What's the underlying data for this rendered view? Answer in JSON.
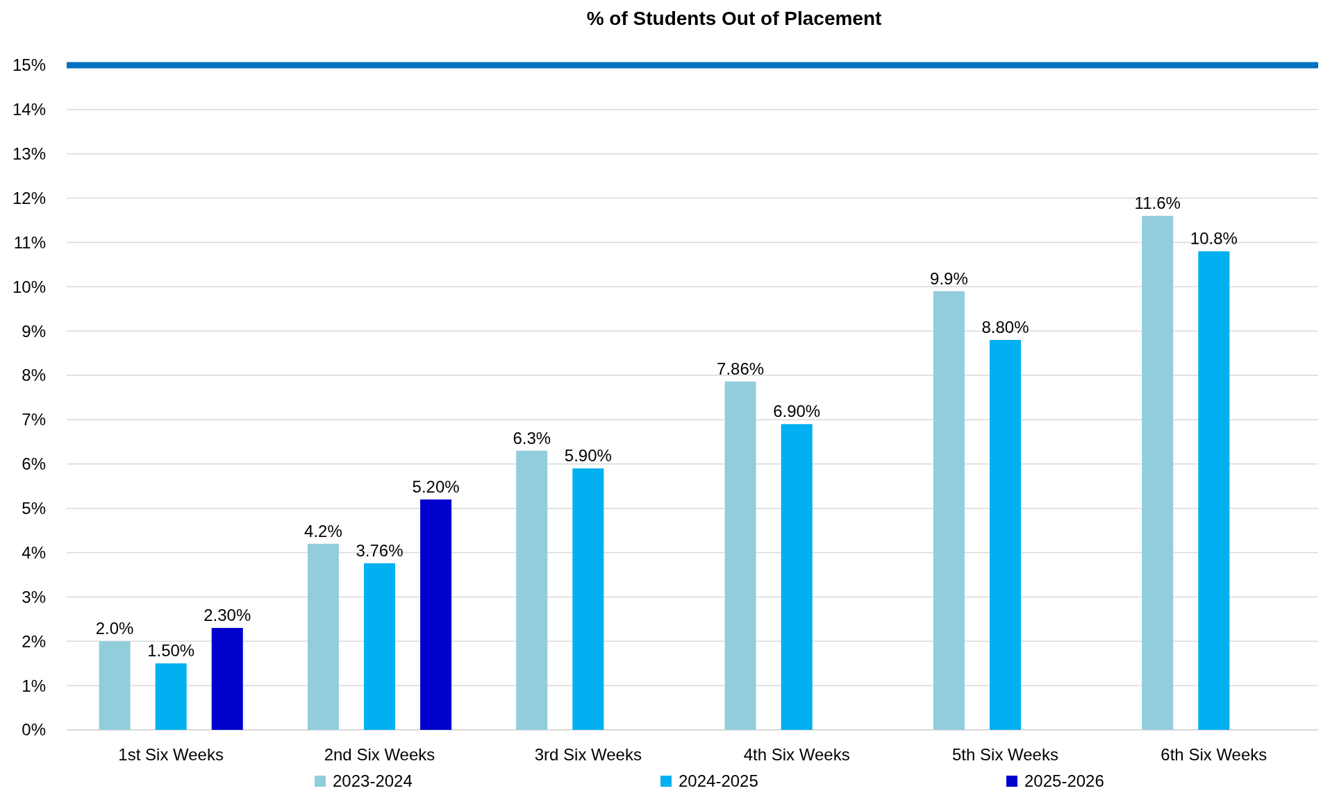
{
  "chart_data": {
    "type": "bar",
    "title": "% of Students Out of Placement",
    "categories": [
      "1st Six Weeks",
      "2nd Six Weeks",
      "3rd Six Weeks",
      "4th Six Weeks",
      "5th Six Weeks",
      "6th Six Weeks"
    ],
    "series": [
      {
        "name": "2023-2024",
        "color": "#92cddc",
        "values": [
          2.0,
          4.2,
          6.3,
          7.86,
          9.9,
          11.6
        ],
        "value_labels": [
          "2.0%",
          "4.2%",
          "6.3%",
          "7.86%",
          "9.9%",
          "11.6%"
        ]
      },
      {
        "name": "2024-2025",
        "color": "#00b0f0",
        "values": [
          1.5,
          3.76,
          5.9,
          6.9,
          8.8,
          10.8
        ],
        "value_labels": [
          "1.50%",
          "3.76%",
          "5.90%",
          "6.90%",
          "8.80%",
          "10.8%"
        ]
      },
      {
        "name": "2025-2026",
        "color": "#0000cc",
        "values": [
          2.3,
          5.2,
          null,
          null,
          null,
          null
        ],
        "value_labels": [
          "2.30%",
          "5.20%",
          null,
          null,
          null,
          null
        ]
      }
    ],
    "ylim": [
      0,
      15
    ],
    "yticks": [
      {
        "value": 0,
        "label": "0%"
      },
      {
        "value": 1,
        "label": "1%"
      },
      {
        "value": 2,
        "label": "2%"
      },
      {
        "value": 3,
        "label": "3%"
      },
      {
        "value": 4,
        "label": "4%"
      },
      {
        "value": 5,
        "label": "5%"
      },
      {
        "value": 6,
        "label": "6%"
      },
      {
        "value": 7,
        "label": "7%"
      },
      {
        "value": 8,
        "label": "8%"
      },
      {
        "value": 9,
        "label": "9%"
      },
      {
        "value": 10,
        "label": "10%"
      },
      {
        "value": 11,
        "label": "11%"
      },
      {
        "value": 12,
        "label": "12%"
      },
      {
        "value": 13,
        "label": "13%"
      },
      {
        "value": 14,
        "label": "14%"
      },
      {
        "value": 15,
        "label": "15%"
      }
    ],
    "ref_lines": [
      {
        "axis": "y",
        "value": 15,
        "color": "#0070c0"
      }
    ],
    "grid": "y",
    "legend": "bottom"
  }
}
